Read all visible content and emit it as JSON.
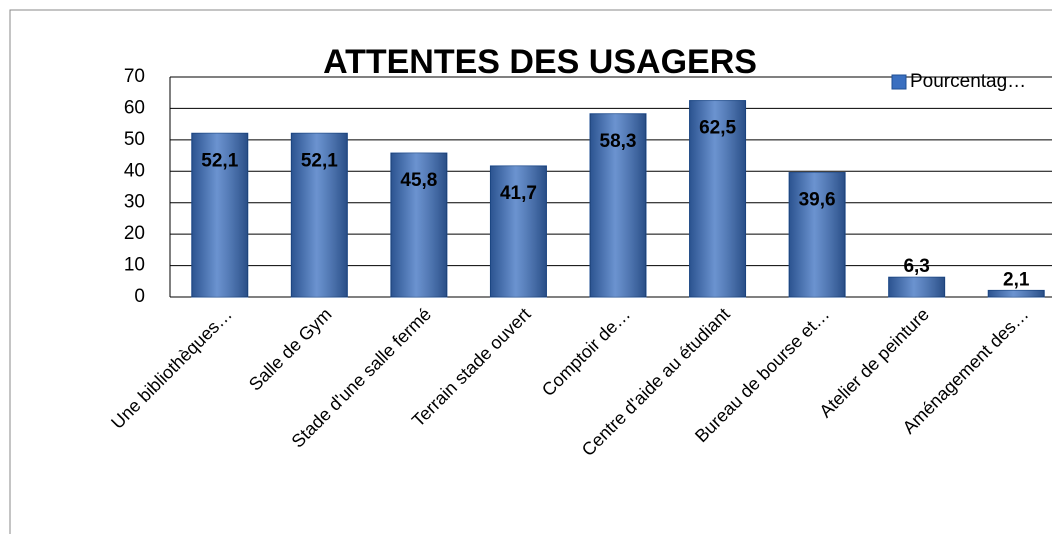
{
  "chart_data": {
    "type": "bar",
    "title": "ATTENTES DES USAGERS",
    "categories": [
      "Une bibliothèques…",
      "Salle de Gym",
      "Stade d'une salle fermé",
      "Terrain stade ouvert",
      "Comptoir de…",
      "Centre d'aide au étudiant",
      "Bureau de bourse et…",
      "Atelier de peinture",
      "Aménagement des…"
    ],
    "series": [
      {
        "name": "Pourcentag…",
        "color": "#3a6fc0",
        "values": [
          52.1,
          52.1,
          45.8,
          41.7,
          58.3,
          62.5,
          39.6,
          6.3,
          2.1
        ],
        "value_labels": [
          "52,1",
          "52,1",
          "45,8",
          "41,7",
          "58,3",
          "62,5",
          "39,6",
          "6,3",
          "2,1"
        ]
      }
    ],
    "ylim": [
      0,
      70
    ],
    "yticks": [
      0,
      10,
      20,
      30,
      40,
      50,
      60,
      70
    ],
    "grid": true,
    "legend": "top-right"
  }
}
